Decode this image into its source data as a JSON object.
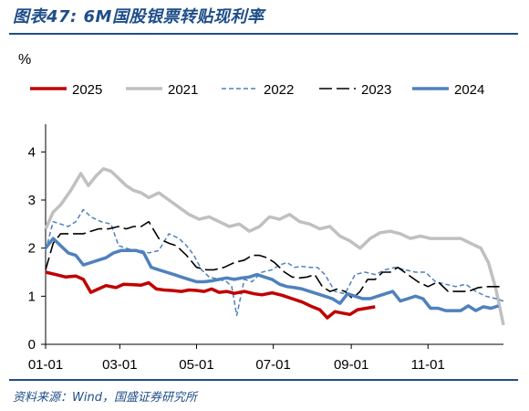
{
  "figure": {
    "title": "图表47: 6M国股银票转贴现利率",
    "source": "资料来源：Wind，国盛证券研究所"
  },
  "chart_data": {
    "type": "line",
    "ylabel": "%",
    "xlabel": "",
    "ylim": [
      0,
      4.5
    ],
    "yticks": [
      0,
      1,
      2,
      3,
      4
    ],
    "xticks": [
      "01-01",
      "03-01",
      "05-01",
      "07-01",
      "09-01",
      "11-01"
    ],
    "xtick_days": [
      0,
      59,
      120,
      181,
      243,
      304
    ],
    "xlim_days": [
      0,
      364
    ],
    "grid": false,
    "legend_position": "top",
    "series": [
      {
        "name": "2025",
        "color": "#c00000",
        "dash": "solid",
        "width": 3.5,
        "x": [
          0,
          8,
          16,
          24,
          30,
          36,
          42,
          48,
          56,
          62,
          70,
          76,
          82,
          88,
          94,
          100,
          108,
          114,
          120,
          126,
          132,
          138,
          144,
          150,
          158,
          166,
          172,
          180,
          188,
          196,
          204,
          212,
          218,
          224,
          230,
          236,
          242,
          248,
          255,
          262
        ],
        "y": [
          1.5,
          1.45,
          1.4,
          1.42,
          1.35,
          1.08,
          1.15,
          1.22,
          1.18,
          1.25,
          1.24,
          1.23,
          1.28,
          1.15,
          1.13,
          1.12,
          1.1,
          1.13,
          1.12,
          1.1,
          1.15,
          1.08,
          1.1,
          1.06,
          1.1,
          1.05,
          1.03,
          1.07,
          1.02,
          0.95,
          0.88,
          0.78,
          0.72,
          0.55,
          0.68,
          0.65,
          0.62,
          0.72,
          0.75,
          0.78
        ]
      },
      {
        "name": "2021",
        "color": "#c0c0c0",
        "dash": "solid",
        "width": 3.5,
        "x": [
          0,
          6,
          12,
          20,
          28,
          34,
          40,
          46,
          52,
          58,
          64,
          70,
          76,
          82,
          90,
          98,
          106,
          114,
          122,
          130,
          138,
          146,
          154,
          162,
          170,
          178,
          186,
          194,
          202,
          210,
          218,
          226,
          234,
          242,
          250,
          258,
          266,
          274,
          282,
          290,
          298,
          306,
          314,
          322,
          330,
          338,
          346,
          352,
          358,
          364
        ],
        "y": [
          2.4,
          2.75,
          2.9,
          3.2,
          3.55,
          3.3,
          3.5,
          3.65,
          3.6,
          3.45,
          3.3,
          3.2,
          3.15,
          3.05,
          3.15,
          3.0,
          2.85,
          2.7,
          2.6,
          2.65,
          2.55,
          2.45,
          2.5,
          2.35,
          2.45,
          2.65,
          2.6,
          2.7,
          2.55,
          2.5,
          2.4,
          2.45,
          2.25,
          2.15,
          2.0,
          2.2,
          2.32,
          2.35,
          2.3,
          2.2,
          2.25,
          2.2,
          2.2,
          2.2,
          2.2,
          2.1,
          2.0,
          1.7,
          1.15,
          0.4
        ]
      },
      {
        "name": "2022",
        "color": "#4f81bd",
        "dash": "dashed",
        "width": 1.5,
        "x": [
          0,
          6,
          12,
          18,
          24,
          30,
          36,
          44,
          52,
          58,
          64,
          70,
          76,
          82,
          90,
          98,
          106,
          112,
          118,
          124,
          130,
          138,
          144,
          148,
          152,
          158,
          164,
          172,
          180,
          186,
          192,
          198,
          204,
          210,
          216,
          222,
          230,
          238,
          246,
          254,
          262,
          270,
          278,
          286,
          294,
          302,
          310,
          318,
          326,
          334,
          342,
          350,
          358,
          364
        ],
        "y": [
          1.95,
          2.55,
          2.5,
          2.45,
          2.55,
          2.8,
          2.65,
          2.55,
          2.5,
          2.05,
          2.0,
          1.95,
          1.95,
          1.9,
          1.95,
          2.3,
          2.2,
          2.05,
          1.85,
          1.55,
          1.4,
          1.35,
          1.3,
          1.2,
          0.6,
          1.35,
          1.3,
          1.5,
          1.55,
          1.65,
          1.7,
          1.6,
          1.62,
          1.6,
          1.6,
          1.45,
          1.1,
          1.05,
          1.45,
          1.5,
          1.45,
          1.55,
          1.6,
          1.55,
          1.5,
          1.5,
          1.3,
          1.25,
          1.2,
          1.25,
          1.1,
          1.0,
          0.95,
          0.9
        ]
      },
      {
        "name": "2023",
        "color": "#000000",
        "dash": "dashed",
        "width": 1.6,
        "x": [
          0,
          6,
          12,
          18,
          24,
          30,
          36,
          42,
          50,
          58,
          64,
          70,
          76,
          82,
          90,
          98,
          104,
          112,
          120,
          128,
          134,
          142,
          150,
          158,
          164,
          170,
          176,
          182,
          186,
          190,
          196,
          202,
          208,
          214,
          220,
          226,
          232,
          238,
          244,
          250,
          256,
          262,
          268,
          274,
          280,
          288,
          296,
          304,
          312,
          320,
          328,
          336,
          344,
          352,
          358,
          364
        ],
        "y": [
          1.55,
          2.1,
          2.3,
          2.3,
          2.3,
          2.3,
          2.35,
          2.4,
          2.4,
          2.45,
          2.4,
          2.45,
          2.45,
          2.55,
          2.2,
          2.1,
          2.05,
          1.85,
          1.6,
          1.55,
          1.55,
          1.6,
          1.7,
          1.75,
          1.85,
          1.85,
          1.8,
          1.7,
          1.6,
          1.5,
          1.4,
          1.38,
          1.4,
          1.45,
          1.2,
          1.1,
          1.15,
          1.1,
          0.95,
          1.1,
          1.35,
          1.35,
          1.5,
          1.5,
          1.6,
          1.45,
          1.3,
          1.2,
          1.3,
          1.1,
          1.1,
          1.1,
          1.18,
          1.2,
          1.2,
          1.2
        ]
      },
      {
        "name": "2024",
        "color": "#4f81bd",
        "dash": "solid",
        "width": 3.5,
        "x": [
          0,
          6,
          12,
          18,
          24,
          30,
          36,
          42,
          48,
          54,
          60,
          66,
          72,
          78,
          84,
          90,
          96,
          102,
          108,
          114,
          120,
          126,
          132,
          138,
          144,
          150,
          156,
          162,
          168,
          174,
          180,
          186,
          192,
          198,
          204,
          210,
          216,
          222,
          228,
          234,
          240,
          246,
          252,
          258,
          264,
          270,
          276,
          282,
          288,
          294,
          300,
          306,
          312,
          318,
          324,
          330,
          336,
          342,
          348,
          354,
          360
        ],
        "y": [
          2.0,
          2.2,
          2.05,
          1.9,
          1.85,
          1.65,
          1.7,
          1.75,
          1.8,
          1.9,
          1.95,
          1.95,
          1.95,
          1.9,
          1.6,
          1.55,
          1.5,
          1.45,
          1.4,
          1.35,
          1.3,
          1.3,
          1.32,
          1.35,
          1.38,
          1.35,
          1.38,
          1.4,
          1.45,
          1.4,
          1.35,
          1.25,
          1.2,
          1.18,
          1.15,
          1.1,
          1.05,
          1.0,
          0.95,
          0.85,
          1.05,
          1.0,
          0.95,
          0.95,
          1.0,
          1.05,
          1.1,
          0.9,
          0.95,
          1.0,
          0.95,
          0.75,
          0.75,
          0.7,
          0.7,
          0.7,
          0.8,
          0.7,
          0.78,
          0.75,
          0.8
        ]
      }
    ]
  }
}
